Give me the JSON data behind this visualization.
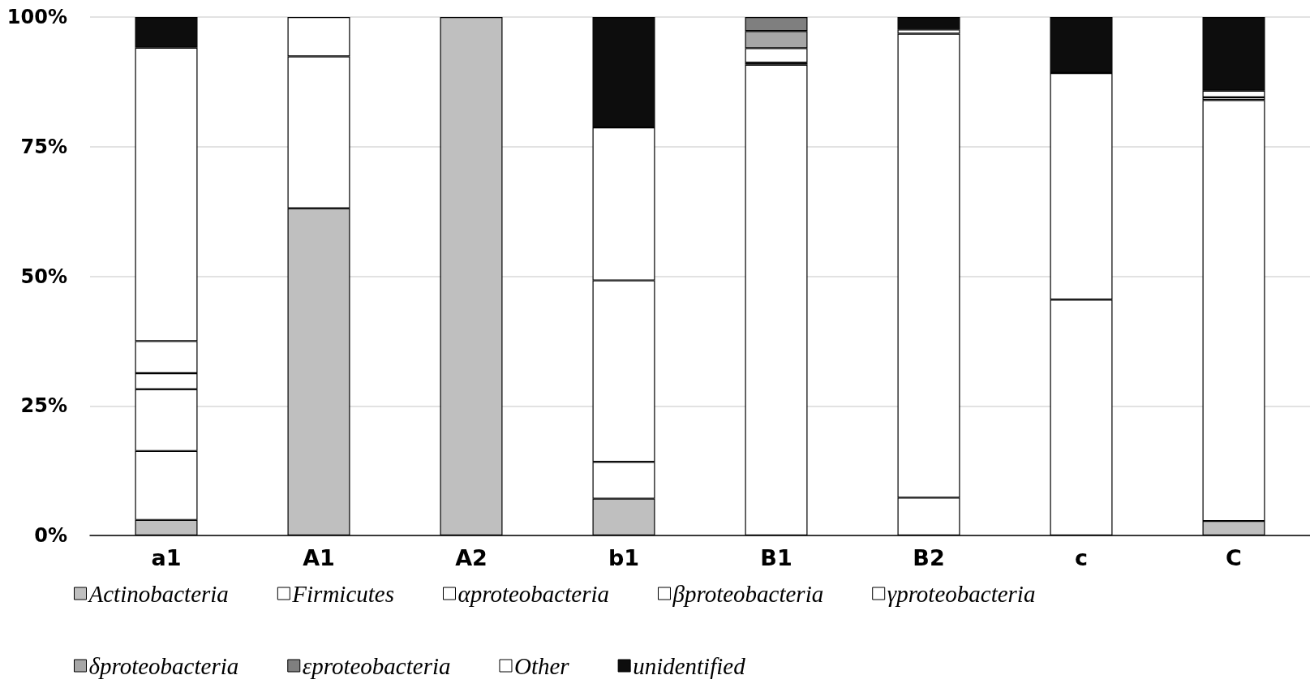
{
  "chart_data": {
    "type": "bar",
    "stacked": true,
    "categories": [
      "a1",
      "A1",
      "A2",
      "b1",
      "B1",
      "B2",
      "c",
      "C"
    ],
    "series": [
      {
        "name": "Actinobacteria",
        "color": "#bfbfbf",
        "values": [
          3.0,
          63.1,
          100,
          7.1,
          null,
          null,
          null,
          2.8
        ]
      },
      {
        "name": "Firmicutes",
        "color": "#ffffff",
        "values": [
          13.3,
          29.3,
          null,
          7.1,
          90.8,
          7.3,
          45.5,
          81.2
        ]
      },
      {
        "name": "αproteobacteria",
        "color": "#ffffff",
        "values": [
          11.9,
          7.6,
          null,
          35.0,
          0.4,
          89.5,
          43.7,
          null
        ]
      },
      {
        "name": "βproteobacteria",
        "color": "#ffffff",
        "values": [
          3.1,
          null,
          null,
          null,
          null,
          null,
          null,
          0.5
        ]
      },
      {
        "name": "γproteobacteria",
        "color": "#ffffff",
        "values": [
          6.2,
          null,
          null,
          29.5,
          2.8,
          0.8,
          null,
          1.3
        ]
      },
      {
        "name": "δproteobacteria",
        "color": "#a6a6a6",
        "values": [
          null,
          null,
          null,
          null,
          3.3,
          null,
          null,
          null
        ]
      },
      {
        "name": "εproteobacteria",
        "color": "#7f7f7f",
        "values": [
          null,
          null,
          null,
          null,
          2.7,
          null,
          null,
          null
        ]
      },
      {
        "name": "Other",
        "color": "#ffffff",
        "values": [
          56.6,
          null,
          null,
          null,
          null,
          null,
          null,
          null
        ]
      },
      {
        "name": "unidentified",
        "color": "#0d0d0d",
        "values": [
          5.9,
          null,
          null,
          21.3,
          null,
          2.4,
          10.8,
          14.2
        ]
      }
    ],
    "ylim": [
      0,
      100
    ],
    "yticks": [
      {
        "value": 0,
        "label": "0%"
      },
      {
        "value": 25,
        "label": "25%"
      },
      {
        "value": 50,
        "label": "50%"
      },
      {
        "value": 75,
        "label": "75%"
      },
      {
        "value": 100,
        "label": "100%"
      }
    ],
    "grid": "y",
    "legend": "bottom"
  }
}
